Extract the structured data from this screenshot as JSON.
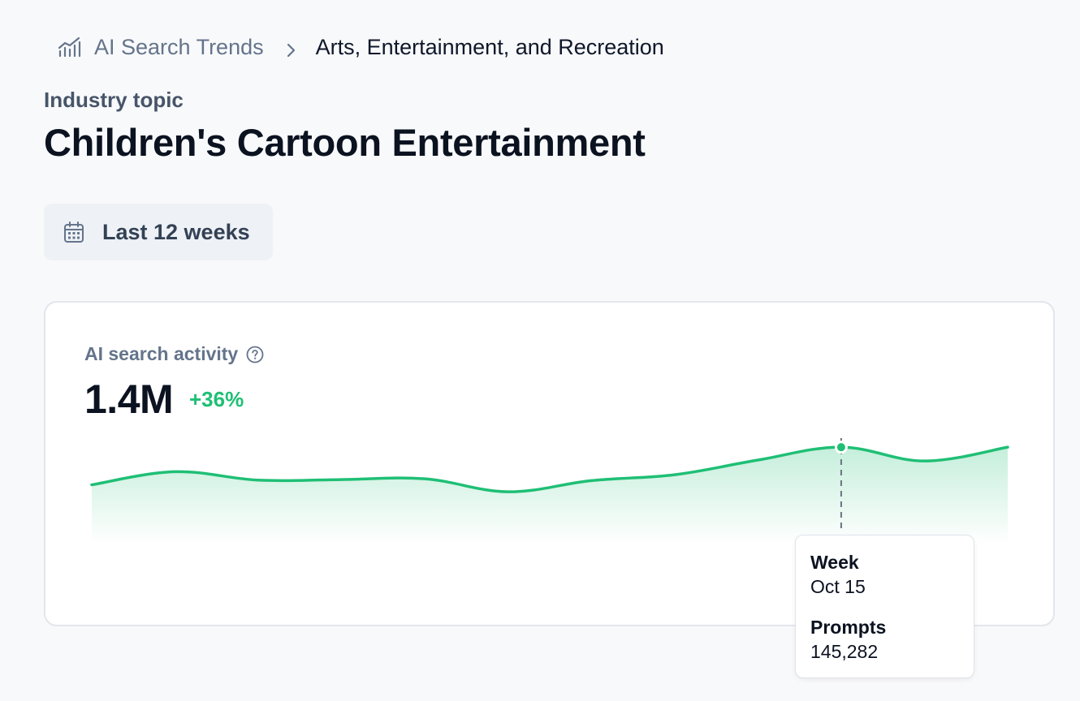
{
  "breadcrumb": {
    "root_label": "AI Search Trends",
    "current_label": "Arts, Entertainment, and Recreation",
    "root_icon": "trend-bars-icon",
    "separator_icon": "chevron-right-icon"
  },
  "header": {
    "eyebrow": "Industry topic",
    "title": "Children's Cartoon Entertainment"
  },
  "date_range": {
    "label": "Last 12 weeks",
    "icon": "calendar-icon"
  },
  "metric": {
    "label": "AI search activity",
    "help_icon": "question-circle-icon",
    "value": "1.4M",
    "change": "+36%"
  },
  "colors": {
    "accent": "#1fbf75",
    "text": "#0f172a",
    "muted": "#64748b"
  },
  "chart_data": {
    "type": "area",
    "x": [
      1,
      2,
      3,
      4,
      5,
      6,
      7,
      8,
      9,
      10,
      11,
      12
    ],
    "y": [
      105000,
      119000,
      110000,
      110600,
      111400,
      97500,
      109500,
      115800,
      131500,
      145282,
      130500,
      145300
    ],
    "ylim": [
      42000,
      155000
    ],
    "grid": false,
    "highlighted_index": 9
  },
  "tooltip": {
    "week_label": "Week",
    "week_value": "Oct 15",
    "prompts_label": "Prompts",
    "prompts_value": "145,282"
  }
}
